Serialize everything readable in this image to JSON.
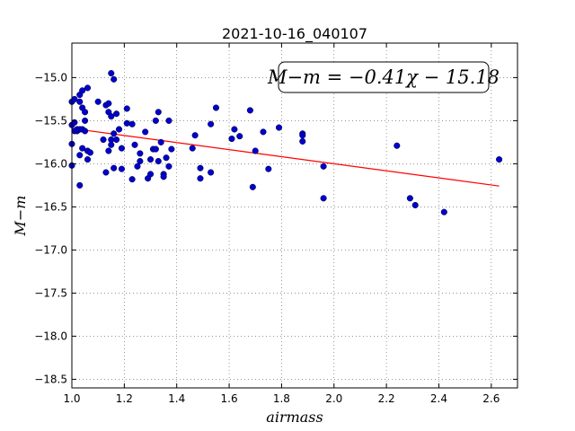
{
  "chart_data": {
    "type": "scatter",
    "title": "2021-10-16_040107",
    "xlabel": "airmass",
    "ylabel": "M−m",
    "xlim": [
      1.0,
      2.7
    ],
    "ylim": [
      -18.6,
      -14.6
    ],
    "y_inverted": true,
    "grid": true,
    "xticks": [
      1.0,
      1.2,
      1.4,
      1.6,
      1.8,
      2.0,
      2.2,
      2.4,
      2.6
    ],
    "xtick_labels": [
      "1.0",
      "1.2",
      "1.4",
      "1.6",
      "1.8",
      "2.0",
      "2.2",
      "2.4",
      "2.6"
    ],
    "yticks": [
      -15.0,
      -15.5,
      -16.0,
      -16.5,
      -17.0,
      -17.5,
      -18.0,
      -18.5
    ],
    "ytick_labels": [
      "−15.0",
      "−15.5",
      "−16.0",
      "−16.5",
      "−17.0",
      "−17.5",
      "−18.0",
      "−18.5"
    ],
    "annotation": "M−m = −0.41χ − 15.18",
    "point_color": "#0000cc",
    "fit_color": "#ff0000",
    "fit_line": {
      "slope": -0.41,
      "intercept": -15.18,
      "x_range": [
        1.0,
        2.63
      ]
    },
    "points": [
      [
        1.0,
        -15.28
      ],
      [
        1.0,
        -15.55
      ],
      [
        1.0,
        -15.77
      ],
      [
        1.0,
        -16.02
      ],
      [
        1.01,
        -15.62
      ],
      [
        1.01,
        -15.25
      ],
      [
        1.01,
        -15.52
      ],
      [
        1.02,
        -15.62
      ],
      [
        1.02,
        -15.6
      ],
      [
        1.03,
        -15.2
      ],
      [
        1.03,
        -15.28
      ],
      [
        1.03,
        -15.6
      ],
      [
        1.04,
        -15.15
      ],
      [
        1.04,
        -15.35
      ],
      [
        1.04,
        -15.6
      ],
      [
        1.04,
        -15.82
      ],
      [
        1.03,
        -15.9
      ],
      [
        1.03,
        -16.25
      ],
      [
        1.05,
        -15.62
      ],
      [
        1.05,
        -15.4
      ],
      [
        1.05,
        -15.5
      ],
      [
        1.06,
        -15.12
      ],
      [
        1.06,
        -15.85
      ],
      [
        1.06,
        -15.95
      ],
      [
        1.07,
        -15.87
      ],
      [
        1.1,
        -15.28
      ],
      [
        1.12,
        -15.72
      ],
      [
        1.13,
        -16.1
      ],
      [
        1.13,
        -15.32
      ],
      [
        1.14,
        -15.3
      ],
      [
        1.14,
        -15.4
      ],
      [
        1.14,
        -15.85
      ],
      [
        1.15,
        -14.95
      ],
      [
        1.15,
        -15.45
      ],
      [
        1.15,
        -15.72
      ],
      [
        1.15,
        -15.78
      ],
      [
        1.16,
        -15.02
      ],
      [
        1.16,
        -15.65
      ],
      [
        1.16,
        -16.05
      ],
      [
        1.17,
        -15.42
      ],
      [
        1.17,
        -15.72
      ],
      [
        1.18,
        -15.6
      ],
      [
        1.19,
        -15.82
      ],
      [
        1.19,
        -16.06
      ],
      [
        1.21,
        -15.36
      ],
      [
        1.21,
        -15.53
      ],
      [
        1.23,
        -15.54
      ],
      [
        1.23,
        -16.18
      ],
      [
        1.24,
        -15.78
      ],
      [
        1.25,
        -16.03
      ],
      [
        1.26,
        -15.88
      ],
      [
        1.26,
        -15.97
      ],
      [
        1.28,
        -15.63
      ],
      [
        1.29,
        -16.17
      ],
      [
        1.3,
        -15.95
      ],
      [
        1.3,
        -16.12
      ],
      [
        1.31,
        -15.83
      ],
      [
        1.32,
        -15.5
      ],
      [
        1.32,
        -15.83
      ],
      [
        1.33,
        -15.4
      ],
      [
        1.33,
        -15.97
      ],
      [
        1.34,
        -15.75
      ],
      [
        1.35,
        -16.12
      ],
      [
        1.35,
        -16.15
      ],
      [
        1.36,
        -15.93
      ],
      [
        1.37,
        -15.5
      ],
      [
        1.37,
        -16.03
      ],
      [
        1.38,
        -15.83
      ],
      [
        1.46,
        -15.82
      ],
      [
        1.47,
        -15.67
      ],
      [
        1.49,
        -16.05
      ],
      [
        1.49,
        -16.17
      ],
      [
        1.53,
        -15.54
      ],
      [
        1.53,
        -16.1
      ],
      [
        1.55,
        -15.35
      ],
      [
        1.61,
        -15.71
      ],
      [
        1.62,
        -15.6
      ],
      [
        1.64,
        -15.68
      ],
      [
        1.68,
        -15.38
      ],
      [
        1.69,
        -16.27
      ],
      [
        1.7,
        -15.85
      ],
      [
        1.73,
        -15.63
      ],
      [
        1.75,
        -16.06
      ],
      [
        1.79,
        -15.58
      ],
      [
        1.88,
        -15.65
      ],
      [
        1.88,
        -15.67
      ],
      [
        1.88,
        -15.74
      ],
      [
        1.96,
        -16.03
      ],
      [
        1.96,
        -16.4
      ],
      [
        2.24,
        -15.79
      ],
      [
        2.29,
        -16.4
      ],
      [
        2.31,
        -16.48
      ],
      [
        2.42,
        -16.56
      ],
      [
        2.63,
        -15.95
      ]
    ]
  }
}
